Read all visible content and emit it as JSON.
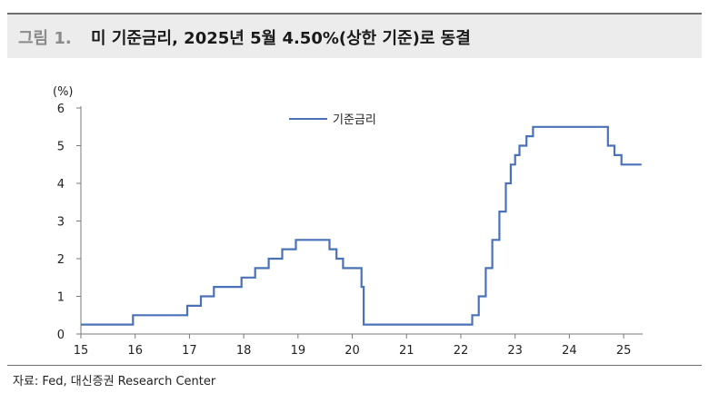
{
  "header": {
    "figure_label": "그림 1.",
    "title": "미 기준금리, 2025년 5월 4.50%(상한 기준)로 동결"
  },
  "source": "자료: Fed, 대신증권 Research Center",
  "colors": {
    "line": "#4a72b8",
    "rule": "#6e6e6e",
    "titlebar": "#ececec"
  },
  "chart_data": {
    "type": "line",
    "title": "미 기준금리, 2025년 5월 4.50%(상한 기준)로 동결",
    "xlabel": "",
    "ylabel": "(%)",
    "unit": "(%)",
    "xlim": [
      15,
      25.35
    ],
    "ylim": [
      0,
      6
    ],
    "x_ticks": [
      "15",
      "16",
      "17",
      "18",
      "19",
      "20",
      "21",
      "22",
      "23",
      "24",
      "25"
    ],
    "y_ticks": [
      "0",
      "1",
      "2",
      "3",
      "4",
      "5",
      "6"
    ],
    "grid": false,
    "legend": "top-center",
    "series": [
      {
        "name": "기준금리",
        "step": true,
        "x": [
          15.0,
          15.96,
          16.96,
          17.21,
          17.45,
          17.96,
          18.21,
          18.46,
          18.71,
          18.96,
          19.58,
          19.71,
          19.83,
          20.17,
          20.21,
          22.21,
          22.33,
          22.46,
          22.58,
          22.71,
          22.83,
          22.92,
          23.0,
          23.08,
          23.21,
          23.33,
          23.58,
          24.71,
          24.83,
          24.96,
          25.33
        ],
        "values": [
          0.25,
          0.5,
          0.75,
          1.0,
          1.25,
          1.5,
          1.75,
          2.0,
          2.25,
          2.5,
          2.25,
          2.0,
          1.75,
          1.25,
          0.25,
          0.5,
          1.0,
          1.75,
          2.5,
          3.25,
          4.0,
          4.5,
          4.75,
          5.0,
          5.25,
          5.5,
          5.5,
          5.0,
          4.75,
          4.5,
          4.5
        ]
      }
    ]
  }
}
